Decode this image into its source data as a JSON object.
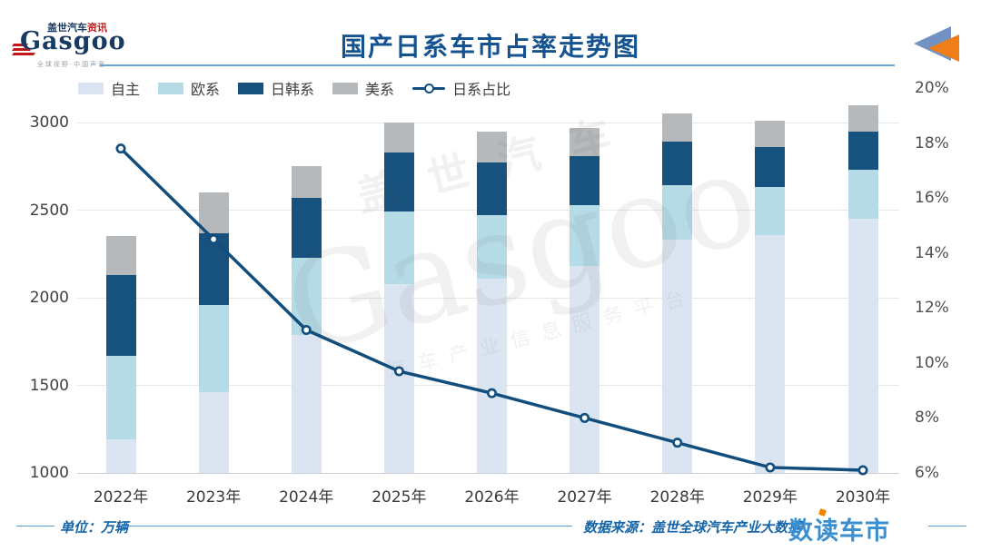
{
  "header": {
    "title": "国产日系车市占率走势图",
    "logo": {
      "brand_cn": "盖世汽车",
      "brand_cn_suffix": "资讯",
      "brand_en": "Gasgoo",
      "tagline": "全球视野·中国声音"
    }
  },
  "watermark": {
    "line1": "盖世汽车",
    "line2": "Gasgoo",
    "line3": "汽车产业信息服务平台"
  },
  "footer": {
    "unit_label": "单位：万辆",
    "source_label": "数据来源：盖世全球汽车产业大数据",
    "brand": "数读车市"
  },
  "colors": {
    "title_blue": "#14538f",
    "footer_blue": "#1565a8",
    "brand_right_blue": "#3a8fd0",
    "brand_accent_orange": "#f08300",
    "corner_triangle_blue": "#7292c4",
    "corner_triangle_orange": "#ef7d1a",
    "gridline": "#e7e7e7",
    "axis_line": "#c9ced3"
  },
  "chart_data": {
    "type": "bar",
    "subtype": "stacked-bar-with-line",
    "title": "国产日系车市占率走势图",
    "unit": "万辆",
    "categories": [
      "2022年",
      "2023年",
      "2024年",
      "2025年",
      "2026年",
      "2027年",
      "2028年",
      "2029年",
      "2030年"
    ],
    "series": [
      {
        "name": "自主",
        "type": "bar",
        "color": "#dbe5f1",
        "values": [
          1190,
          1460,
          1790,
          2080,
          2110,
          2180,
          2330,
          2360,
          2450
        ]
      },
      {
        "name": "欧系",
        "type": "bar",
        "color": "#b5dbe7",
        "values": [
          480,
          500,
          440,
          410,
          360,
          350,
          310,
          270,
          280
        ]
      },
      {
        "name": "日韩系",
        "type": "bar",
        "color": "#17517e",
        "values": [
          460,
          410,
          340,
          340,
          300,
          280,
          250,
          230,
          220
        ]
      },
      {
        "name": "美系",
        "type": "bar",
        "color": "#b6b9bb",
        "values": [
          220,
          230,
          180,
          170,
          180,
          160,
          160,
          150,
          150
        ]
      },
      {
        "name": "日系占比",
        "type": "line",
        "axis": "right",
        "color": "#124e7d",
        "values_percent": [
          17.8,
          14.5,
          11.2,
          9.7,
          8.9,
          8.0,
          7.1,
          6.2,
          6.1
        ]
      }
    ],
    "stacked_totals": [
      2350,
      2600,
      2750,
      3000,
      2950,
      2970,
      3050,
      3010,
      3100
    ],
    "left_axis": {
      "min": 1000,
      "max": 3000,
      "ticks": [
        "3000",
        "2500",
        "2000",
        "1500",
        "1000"
      ],
      "tick_values": [
        3000,
        2500,
        2000,
        1500,
        1000
      ]
    },
    "right_axis": {
      "min": 6,
      "max": 20,
      "ticks": [
        "20%",
        "18%",
        "16%",
        "14%",
        "12%",
        "10%",
        "8%",
        "6%"
      ],
      "tick_values": [
        20,
        18,
        16,
        14,
        12,
        10,
        8,
        6
      ]
    },
    "legend": [
      "自主",
      "欧系",
      "日韩系",
      "美系",
      "日系占比"
    ],
    "legend_position": "top-left",
    "grid": "horizontal"
  }
}
